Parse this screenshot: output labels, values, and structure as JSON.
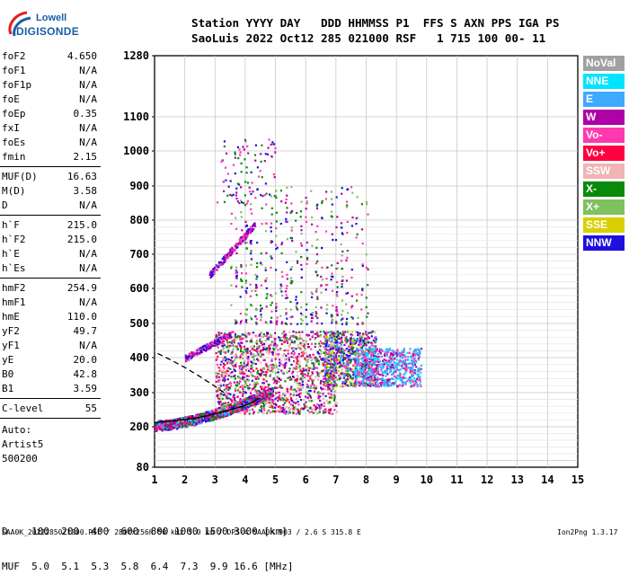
{
  "logo": {
    "line1": "Lowell",
    "line2": "DIGISONDE"
  },
  "header": {
    "labels": "Station YYYY DAY   DDD HHMMSS P1  FFS S AXN PPS IGA PS",
    "values": "SaoLuis 2022 Oct12 285 021000 RSF   1 715 100 00- 11"
  },
  "params": {
    "group1": [
      {
        "key": "foF2",
        "value": "4.650"
      },
      {
        "key": "foF1",
        "value": "N/A"
      },
      {
        "key": "foF1p",
        "value": "N/A"
      },
      {
        "key": "foE",
        "value": "N/A"
      },
      {
        "key": "foEp",
        "value": "0.35"
      },
      {
        "key": "fxI",
        "value": "N/A"
      },
      {
        "key": "foEs",
        "value": "N/A"
      },
      {
        "key": "fmin",
        "value": "2.15"
      }
    ],
    "group2": [
      {
        "key": "MUF(D)",
        "value": "16.63"
      },
      {
        "key": "M(D)",
        "value": "3.58"
      },
      {
        "key": "D",
        "value": "N/A"
      }
    ],
    "group3": [
      {
        "key": "h`F",
        "value": "215.0"
      },
      {
        "key": "h`F2",
        "value": "215.0"
      },
      {
        "key": "h`E",
        "value": "N/A"
      },
      {
        "key": "h`Es",
        "value": "N/A"
      }
    ],
    "group4": [
      {
        "key": "hmF2",
        "value": "254.9"
      },
      {
        "key": "hmF1",
        "value": "N/A"
      },
      {
        "key": "hmE",
        "value": "110.0"
      },
      {
        "key": "yF2",
        "value": "49.7"
      },
      {
        "key": "yF1",
        "value": "N/A"
      },
      {
        "key": "yE",
        "value": "20.0"
      },
      {
        "key": "B0",
        "value": "42.8"
      },
      {
        "key": "B1",
        "value": "3.59"
      }
    ],
    "group5": [
      {
        "key": "C-level",
        "value": "55"
      }
    ],
    "auto": [
      "Auto:",
      "Artist5",
      "500200"
    ]
  },
  "legend": [
    {
      "label": "NoVal",
      "color": "#a0a0a0"
    },
    {
      "label": "NNE",
      "color": "#00e5ff"
    },
    {
      "label": "E",
      "color": "#3fa8ff"
    },
    {
      "label": "W",
      "color": "#b000a8"
    },
    {
      "label": "Vo-",
      "color": "#ff3ab0"
    },
    {
      "label": "Vo+",
      "color": "#ff0040"
    },
    {
      "label": "SSW",
      "color": "#f0b4b4"
    },
    {
      "label": "X-",
      "color": "#0a8a0a"
    },
    {
      "label": "X+",
      "color": "#7fc060"
    },
    {
      "label": "SSE",
      "color": "#d8d000"
    },
    {
      "label": "NNW",
      "color": "#2010e0"
    }
  ],
  "dtable": {
    "row1": "D    100  200  400  600  800 1000 1500 3000 [km]",
    "row2": "MUF  5.0  5.1  5.3  5.8  6.4  7.3  9.9 16.6 [MHz]"
  },
  "footer": {
    "left": "SAA0K_2022285021000.RSF / 280fx256h 50 kHz 5.0 km / DPS-4 SAA0K 903 / 2.6 S 315.8 E",
    "right": "Ion2Png 1.3.17"
  },
  "chart_data": {
    "type": "scatter",
    "xlim": [
      1,
      15
    ],
    "ylim": [
      80,
      1280
    ],
    "x_ticks": [
      1,
      2,
      3,
      4,
      5,
      6,
      7,
      8,
      9,
      10,
      11,
      12,
      13,
      14,
      15
    ],
    "y_ticks": [
      80,
      200,
      300,
      400,
      500,
      600,
      700,
      800,
      900,
      1000,
      1100,
      1280
    ],
    "grid": true,
    "clusters": [
      {
        "name": "F-trace",
        "x": [
          1.0,
          4.9
        ],
        "y": [
          200,
          310
        ],
        "colors": [
          "#2010e0",
          "#b000a8",
          "#ff3ab0",
          "#ff0040",
          "#0a8a0a",
          "#3fa8ff"
        ],
        "n": 1200
      },
      {
        "name": "F2-spread",
        "x": [
          3.0,
          7.0
        ],
        "y": [
          240,
          480
        ],
        "colors": [
          "#2010e0",
          "#b000a8",
          "#ff3ab0",
          "#ff0040",
          "#0a8a0a",
          "#7fc060",
          "#f0b4b4"
        ],
        "n": 1500
      },
      {
        "name": "spread-high",
        "x": [
          6.6,
          8.3
        ],
        "y": [
          320,
          480
        ],
        "colors": [
          "#3fa8ff",
          "#ff3ab0",
          "#b000a8",
          "#d8d000",
          "#2010e0",
          "#0a8a0a"
        ],
        "n": 700
      },
      {
        "name": "E-dir",
        "x": [
          7.6,
          9.8
        ],
        "y": [
          320,
          430
        ],
        "colors": [
          "#3fa8ff",
          "#3fa8ff",
          "#00e5ff",
          "#ff3ab0",
          "#b000a8"
        ],
        "n": 650
      },
      {
        "name": "2nd-hop",
        "x": [
          2.0,
          3.5
        ],
        "y": [
          400,
          470
        ],
        "colors": [
          "#2010e0",
          "#b000a8",
          "#ff3ab0"
        ],
        "n": 200
      },
      {
        "name": "3rd-hop",
        "x": [
          2.8,
          4.3
        ],
        "y": [
          640,
          790
        ],
        "colors": [
          "#2010e0",
          "#b000a8",
          "#ff3ab0"
        ],
        "n": 200
      },
      {
        "name": "high-streaks",
        "x": [
          3.5,
          8.0
        ],
        "y": [
          500,
          900
        ],
        "colors": [
          "#b000a8",
          "#2010e0",
          "#ff3ab0",
          "#0a8a0a",
          "#7fc060"
        ],
        "n": 500
      },
      {
        "name": "top-sparse",
        "x": [
          3.0,
          5.0
        ],
        "y": [
          850,
          1040
        ],
        "colors": [
          "#b000a8",
          "#2010e0",
          "#ff3ab0",
          "#0a8a0a"
        ],
        "n": 90
      }
    ],
    "profile_line": {
      "x": [
        1.0,
        1.3,
        1.7,
        2.1,
        2.5,
        2.9,
        3.3,
        3.6,
        3.9,
        4.2,
        4.5
      ],
      "y": [
        212,
        215,
        218,
        222,
        228,
        236,
        245,
        252,
        260,
        270,
        285
      ],
      "color": "#000000"
    },
    "dashed_line": {
      "x": [
        1.1,
        1.5,
        2.0,
        2.5,
        3.0,
        3.3
      ],
      "y": [
        412,
        395,
        372,
        346,
        318,
        300
      ],
      "color": "#000000"
    }
  }
}
